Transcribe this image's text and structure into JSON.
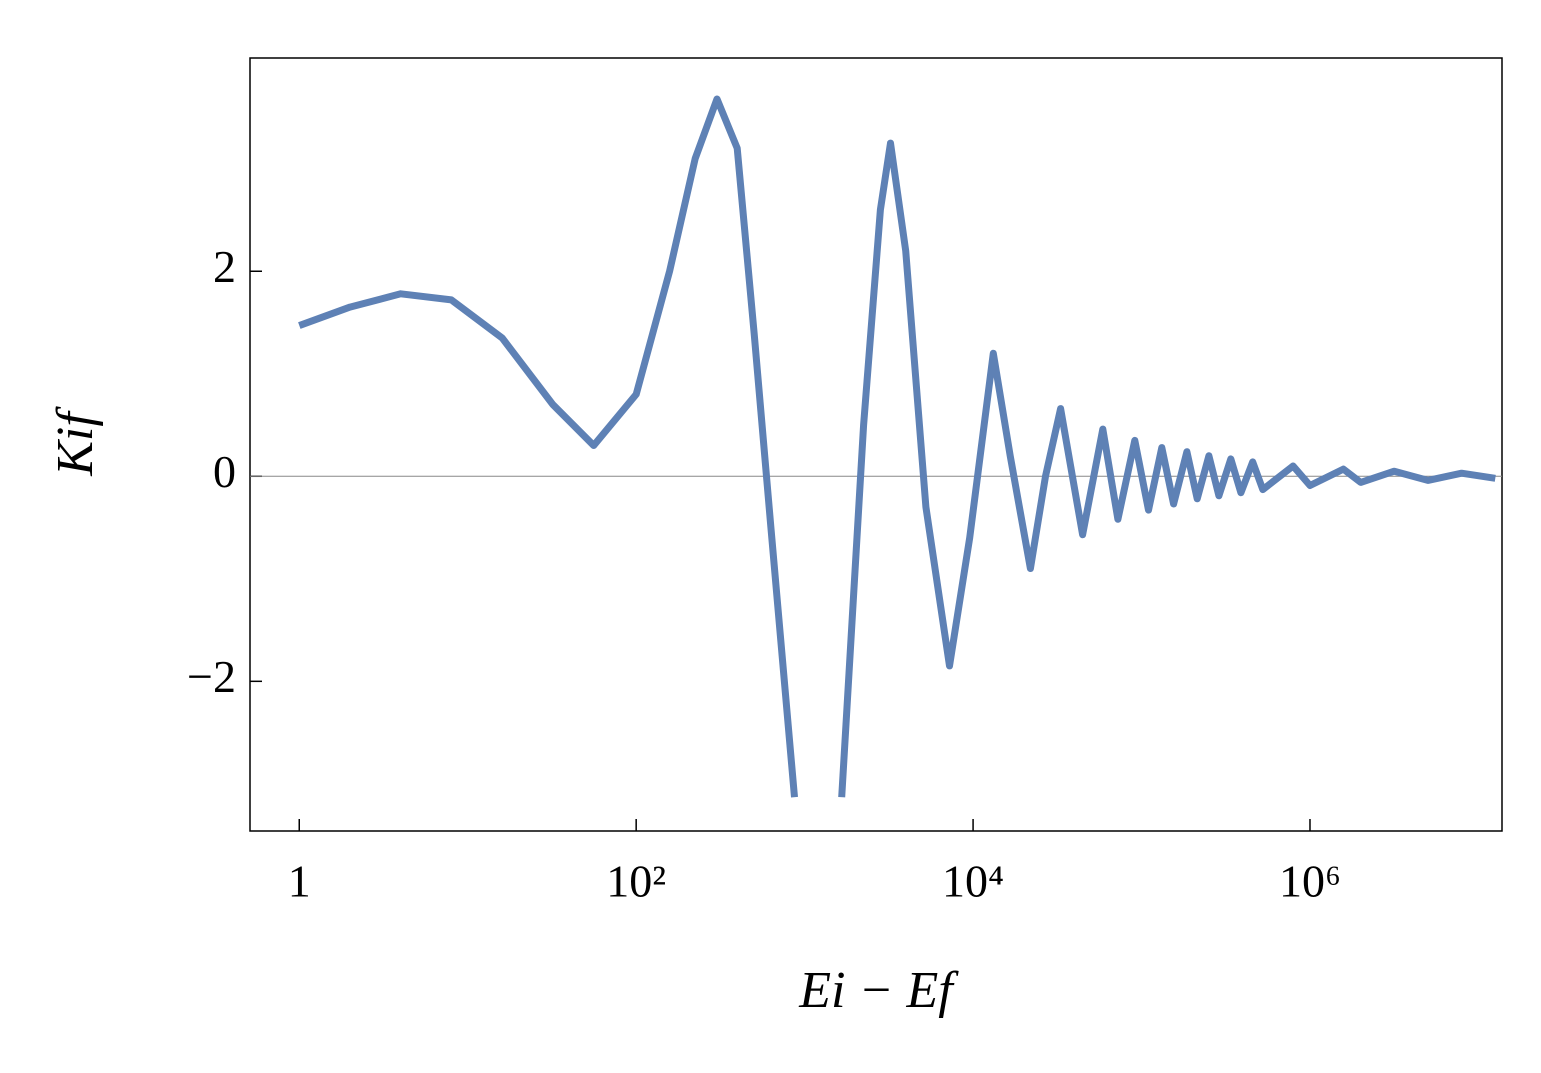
{
  "chart_data": {
    "type": "line",
    "x_label": "Ei − Ef",
    "y_label": "Kif",
    "xscale": "log",
    "x": [
      1,
      2,
      4,
      8,
      16,
      32,
      56,
      100,
      158,
      224,
      302,
      398,
      501,
      631,
      871,
      1000,
      1660,
      2239,
      2818,
      3236,
      3981,
      5248,
      7244,
      9550,
      13180,
      16600,
      21900,
      26900,
      33100,
      44700,
      58900,
      72400,
      91200,
      110000,
      132000,
      155000,
      186000,
      214000,
      251000,
      288000,
      339000,
      389000,
      457000,
      525000,
      794000,
      1000000,
      1580000,
      2000000,
      3160000,
      5010000,
      7940000,
      12600000
    ],
    "series": [
      {
        "color": "#5e81b5",
        "values": [
          1.47,
          1.65,
          1.78,
          1.72,
          1.35,
          0.7,
          0.3,
          0.8,
          2.0,
          3.1,
          3.68,
          3.2,
          1.4,
          -0.5,
          -3.13,
          null,
          -3.13,
          0.5,
          2.6,
          3.25,
          2.2,
          -0.3,
          -1.85,
          -0.6,
          1.2,
          0.2,
          -0.9,
          0,
          0.66,
          -0.57,
          0.46,
          -0.42,
          0.35,
          -0.33,
          0.28,
          -0.27,
          0.24,
          -0.22,
          0.2,
          -0.19,
          0.17,
          -0.16,
          0.14,
          -0.13,
          0.1,
          -0.09,
          0.07,
          -0.06,
          0.05,
          -0.04,
          0.03,
          -0.02
        ]
      }
    ],
    "xlim": [
      0.51,
      13800000
    ],
    "xticks": [
      1,
      {
        "value": 100,
        "label": "10²"
      },
      {
        "value": 10000,
        "label": "10⁴"
      },
      {
        "value": 1000000,
        "label": "10⁶"
      }
    ],
    "ylim": [
      -3.46,
      4.08
    ],
    "yticks": [
      {
        "value": -2,
        "label": "−2"
      },
      0,
      2
    ],
    "zero_line": true
  }
}
